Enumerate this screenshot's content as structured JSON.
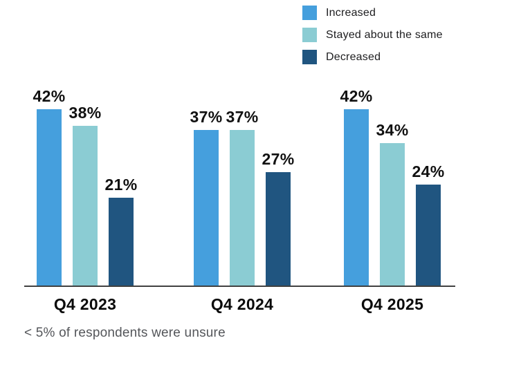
{
  "chart_data": {
    "type": "bar",
    "title": "",
    "categories": [
      "Q4 2023",
      "Q4 2024",
      "Q4 2025"
    ],
    "series": [
      {
        "name": "Increased",
        "color": "#459fdd",
        "values": [
          42,
          37,
          42
        ]
      },
      {
        "name": "Stayed about the same",
        "color": "#8bccd3",
        "values": [
          38,
          37,
          34
        ]
      },
      {
        "name": "Decreased",
        "color": "#205580",
        "values": [
          21,
          27,
          24
        ]
      }
    ],
    "value_suffix": "%",
    "ylim": [
      0,
      45
    ],
    "grid": false,
    "legend_position": "top-right",
    "xlabel": "",
    "ylabel": "",
    "footnote": "< 5% of respondents were unsure",
    "colors": {
      "axis": "#404040",
      "value_label": "#111111",
      "category_label": "#0a0a0a",
      "footnote": "#54565a",
      "background": "#ffffff"
    }
  }
}
